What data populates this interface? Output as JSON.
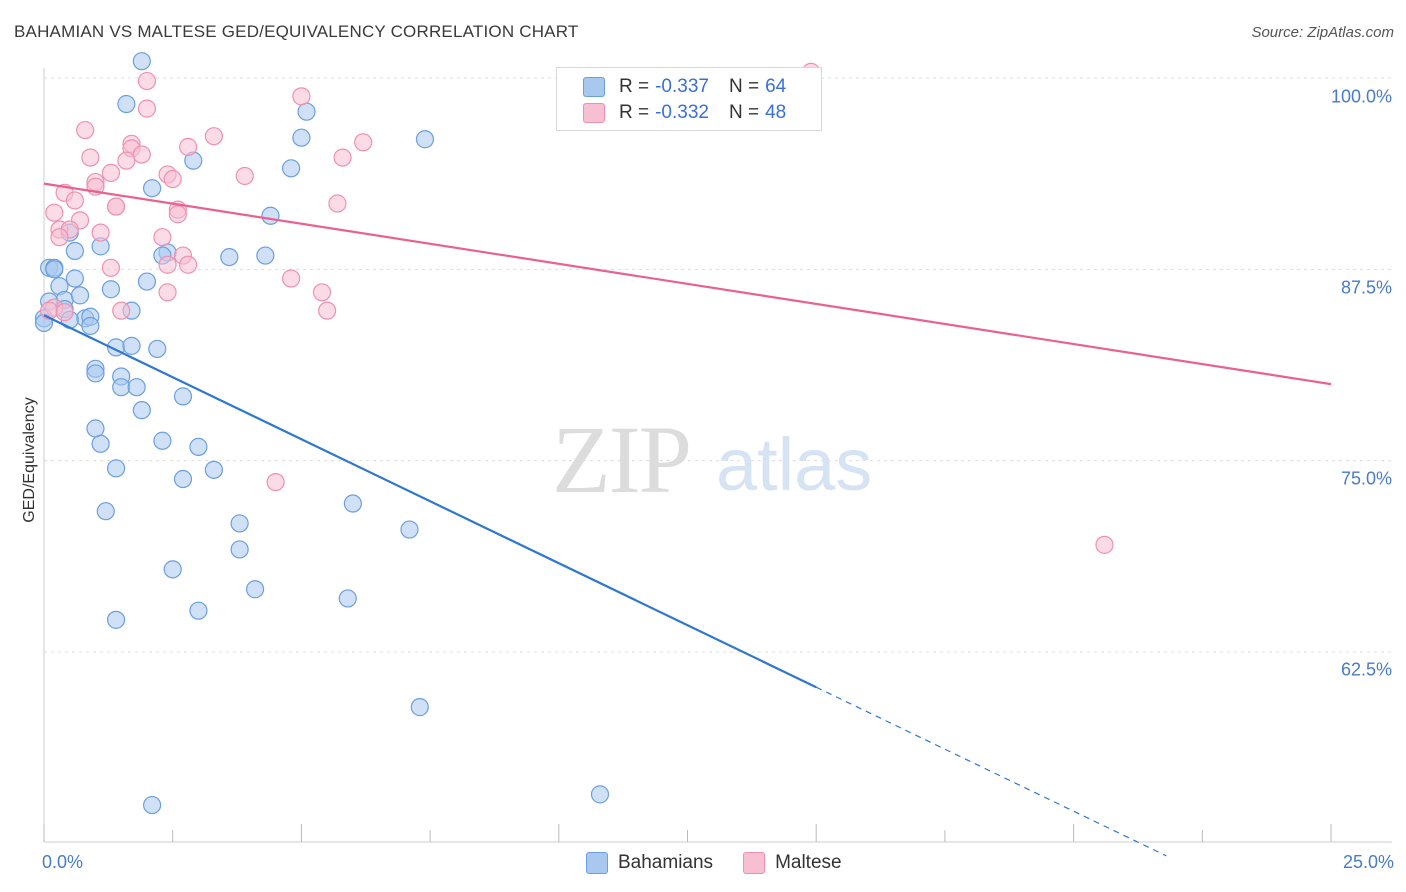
{
  "chart_data": {
    "type": "scatter",
    "title": "BAHAMIAN VS MALTESE GED/EQUIVALENCY CORRELATION CHART",
    "source": "Source: ZipAtlas.com",
    "ylabel": "GED/Equivalency",
    "xlim": [
      0,
      25
    ],
    "ylim": [
      50.5,
      102
    ],
    "y_ticks": [
      {
        "value": 100,
        "label": "100.0%"
      },
      {
        "value": 87.5,
        "label": "87.5%"
      },
      {
        "value": 75,
        "label": "75.0%"
      },
      {
        "value": 62.5,
        "label": "62.5%"
      }
    ],
    "x_tick_labels": {
      "min": "0.0%",
      "max": "25.0%"
    },
    "watermark": {
      "zip": "ZIP",
      "atlas": "atlas"
    },
    "series": [
      {
        "name": "Bahamians",
        "color": "#6a9fe0",
        "fill": "#a9c8f0",
        "line_color": "#2f77d0",
        "R": "-0.337",
        "N": "64",
        "trend": {
          "x0": 0,
          "y0": 84.5,
          "x1": 15,
          "y1": 60.2,
          "x_dash_end": 21.8
        },
        "points": [
          [
            1.9,
            101.1
          ],
          [
            1.6,
            98.3
          ],
          [
            5.1,
            97.8
          ],
          [
            7.4,
            96.0
          ],
          [
            5.0,
            96.1
          ],
          [
            2.9,
            94.6
          ],
          [
            4.8,
            94.1
          ],
          [
            2.1,
            92.8
          ],
          [
            4.4,
            91.0
          ],
          [
            0.5,
            89.9
          ],
          [
            1.1,
            89.0
          ],
          [
            0.6,
            88.7
          ],
          [
            2.4,
            88.6
          ],
          [
            3.6,
            88.3
          ],
          [
            4.3,
            88.4
          ],
          [
            2.3,
            88.4
          ],
          [
            0.1,
            87.6
          ],
          [
            0.2,
            87.6
          ],
          [
            0.6,
            86.9
          ],
          [
            2.0,
            86.7
          ],
          [
            0.3,
            86.4
          ],
          [
            0.4,
            85.5
          ],
          [
            1.3,
            86.2
          ],
          [
            0.1,
            85.4
          ],
          [
            0.7,
            85.8
          ],
          [
            0.4,
            84.9
          ],
          [
            1.7,
            84.8
          ],
          [
            0.8,
            84.3
          ],
          [
            0.9,
            84.4
          ],
          [
            0.5,
            84.2
          ],
          [
            0.9,
            83.8
          ],
          [
            0.0,
            84.3
          ],
          [
            1.4,
            82.4
          ],
          [
            1.7,
            82.5
          ],
          [
            2.2,
            82.3
          ],
          [
            1.0,
            81.0
          ],
          [
            1.0,
            80.7
          ],
          [
            1.5,
            80.5
          ],
          [
            1.5,
            79.8
          ],
          [
            1.8,
            79.8
          ],
          [
            2.7,
            79.2
          ],
          [
            1.9,
            78.3
          ],
          [
            1.0,
            77.1
          ],
          [
            1.1,
            76.1
          ],
          [
            2.3,
            76.3
          ],
          [
            3.0,
            75.9
          ],
          [
            1.4,
            74.5
          ],
          [
            2.7,
            73.8
          ],
          [
            3.3,
            74.4
          ],
          [
            1.2,
            71.7
          ],
          [
            6.0,
            72.2
          ],
          [
            3.8,
            70.9
          ],
          [
            7.1,
            70.5
          ],
          [
            3.8,
            69.2
          ],
          [
            2.5,
            67.9
          ],
          [
            4.1,
            66.6
          ],
          [
            5.9,
            66.0
          ],
          [
            3.0,
            65.2
          ],
          [
            1.4,
            64.6
          ],
          [
            7.3,
            58.9
          ],
          [
            10.8,
            53.2
          ],
          [
            2.1,
            52.5
          ],
          [
            0.0,
            84.0
          ],
          [
            0.2,
            87.5
          ]
        ]
      },
      {
        "name": "Maltese",
        "color": "#f090b0",
        "fill": "#f7bfd2",
        "line_color": "#e8628e",
        "R": "-0.332",
        "N": "48",
        "trend": {
          "x0": 0,
          "y0": 93.1,
          "x1": 25,
          "y1": 80.0
        },
        "points": [
          [
            14.9,
            100.4
          ],
          [
            2.0,
            99.8
          ],
          [
            5.0,
            98.8
          ],
          [
            2.0,
            98.0
          ],
          [
            0.8,
            96.6
          ],
          [
            3.3,
            96.2
          ],
          [
            6.2,
            95.8
          ],
          [
            1.7,
            95.7
          ],
          [
            2.8,
            95.5
          ],
          [
            1.7,
            95.4
          ],
          [
            1.9,
            95.0
          ],
          [
            0.9,
            94.8
          ],
          [
            5.8,
            94.8
          ],
          [
            1.6,
            94.6
          ],
          [
            1.3,
            93.8
          ],
          [
            2.4,
            93.7
          ],
          [
            3.9,
            93.6
          ],
          [
            2.5,
            93.4
          ],
          [
            1.0,
            93.2
          ],
          [
            1.0,
            92.9
          ],
          [
            0.4,
            92.5
          ],
          [
            0.6,
            92.0
          ],
          [
            1.4,
            91.6
          ],
          [
            5.7,
            91.8
          ],
          [
            1.4,
            91.6
          ],
          [
            0.2,
            91.2
          ],
          [
            2.6,
            91.4
          ],
          [
            2.6,
            91.1
          ],
          [
            0.7,
            90.7
          ],
          [
            0.3,
            90.1
          ],
          [
            0.5,
            90.1
          ],
          [
            1.1,
            89.9
          ],
          [
            0.3,
            89.6
          ],
          [
            2.3,
            89.6
          ],
          [
            2.7,
            88.4
          ],
          [
            2.8,
            87.8
          ],
          [
            1.3,
            87.6
          ],
          [
            2.4,
            87.8
          ],
          [
            4.8,
            86.9
          ],
          [
            2.4,
            86.0
          ],
          [
            5.4,
            86.0
          ],
          [
            1.5,
            84.8
          ],
          [
            5.5,
            84.8
          ],
          [
            0.2,
            85.0
          ],
          [
            0.1,
            84.8
          ],
          [
            0.4,
            84.7
          ],
          [
            4.5,
            73.6
          ],
          [
            20.6,
            69.5
          ]
        ]
      }
    ]
  }
}
